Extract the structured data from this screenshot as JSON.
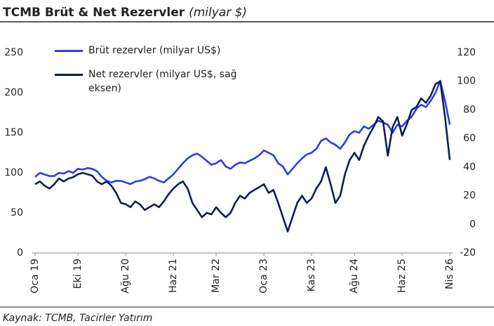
{
  "chart_data": {
    "type": "line",
    "title": "TCMB Brüt & Net Rezervler",
    "subtitle": "(milyar $)",
    "source": "Kaynak: TCMB, Tacirler Yatırım",
    "categories": [
      "Oca 19",
      null,
      null,
      null,
      null,
      null,
      null,
      null,
      null,
      "Eki 19",
      null,
      null,
      null,
      null,
      null,
      null,
      null,
      null,
      null,
      "Ağu 20",
      null,
      null,
      null,
      null,
      null,
      null,
      null,
      null,
      null,
      "Haz 21",
      null,
      null,
      null,
      null,
      null,
      null,
      null,
      null,
      "Mar 22",
      null,
      null,
      null,
      null,
      null,
      null,
      null,
      null,
      null,
      "Oca 23",
      null,
      null,
      null,
      null,
      null,
      null,
      null,
      null,
      null,
      "Kas 23",
      null,
      null,
      null,
      null,
      null,
      null,
      null,
      null,
      "Ağu 24",
      null,
      null,
      null,
      null,
      null,
      null,
      null,
      null,
      null,
      "Haz 25",
      null,
      null,
      null,
      null,
      null,
      null,
      null,
      null,
      null,
      "Nis 26"
    ],
    "series": [
      {
        "name": "Brüt rezervler (milyar US$)",
        "color": "#2b3fe0",
        "values": [
          95,
          100,
          98,
          96,
          96,
          100,
          99,
          102,
          100,
          105,
          104,
          106,
          105,
          102,
          95,
          90,
          88,
          90,
          90,
          88,
          86,
          89,
          90,
          92,
          95,
          93,
          90,
          88,
          93,
          98,
          105,
          112,
          118,
          122,
          124,
          120,
          115,
          110,
          112,
          116,
          108,
          105,
          110,
          113,
          112,
          115,
          118,
          122,
          128,
          125,
          122,
          112,
          108,
          98,
          105,
          112,
          118,
          123,
          125,
          130,
          140,
          143,
          138,
          135,
          130,
          138,
          148,
          152,
          150,
          158,
          155,
          160,
          165,
          163,
          160,
          150,
          160,
          158,
          165,
          170,
          180,
          185,
          182,
          190,
          200,
          215,
          190,
          160
        ]
      },
      {
        "name": "Net rezervler (milyar US$, sağ eksen)",
        "color": "#0d1f4f",
        "axis": "y2",
        "values": [
          28,
          30,
          27,
          25,
          28,
          32,
          30,
          32,
          33,
          35,
          36,
          35,
          34,
          30,
          28,
          30,
          27,
          22,
          15,
          14,
          12,
          16,
          14,
          10,
          12,
          14,
          12,
          16,
          21,
          25,
          28,
          30,
          25,
          15,
          10,
          5,
          8,
          7,
          12,
          8,
          5,
          8,
          15,
          20,
          18,
          22,
          24,
          26,
          28,
          22,
          24,
          15,
          5,
          -5,
          5,
          15,
          20,
          15,
          18,
          25,
          30,
          40,
          28,
          15,
          20,
          35,
          45,
          50,
          45,
          55,
          62,
          68,
          75,
          72,
          48,
          68,
          75,
          62,
          70,
          80,
          82,
          88,
          85,
          90,
          98,
          100,
          75,
          45
        ]
      }
    ],
    "ylim": [
      0,
      250
    ],
    "yticks": [
      0,
      50,
      100,
      150,
      200,
      250
    ],
    "y2lim": [
      -20,
      120
    ],
    "y2ticks": [
      -20,
      0,
      20,
      40,
      60,
      80,
      100,
      120
    ],
    "grid": false,
    "legend": "top-left"
  }
}
